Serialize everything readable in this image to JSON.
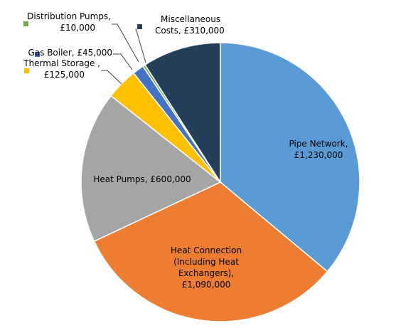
{
  "chart_data": {
    "type": "pie",
    "title": "",
    "currency": "£",
    "slices": [
      {
        "name": "Pipe Network",
        "value": 1230000,
        "color": "#5B9BD5",
        "label_lines": [
          "Pipe Network,",
          "£1,230,000"
        ]
      },
      {
        "name": "Heat Connection (Including Heat Exchangers)",
        "value": 1090000,
        "color": "#ED7D31",
        "label_lines": [
          "Heat Connection",
          "(Including Heat",
          "Exchangers),",
          "£1,090,000"
        ]
      },
      {
        "name": "Heat Pumps",
        "value": 600000,
        "color": "#A5A5A5",
        "label_lines": [
          "Heat Pumps,  £600,000"
        ]
      },
      {
        "name": "Thermal Storage",
        "value": 125000,
        "color": "#FFC000",
        "label_lines": [
          "Thermal Storage ,",
          "£125,000"
        ]
      },
      {
        "name": "Gas Boiler",
        "value": 45000,
        "color": "#4472C4",
        "label_lines": [
          "Gas Boiler,  £45,000"
        ]
      },
      {
        "name": "Distribution Pumps",
        "value": 10000,
        "color": "#70AD47",
        "label_lines": [
          "Distribution Pumps,",
          "£10,000"
        ]
      },
      {
        "name": "Miscellaneous Costs",
        "value": 310000,
        "color": "#243F5A",
        "label_lines": [
          "Miscellaneous",
          "Costs,  £310,000"
        ]
      }
    ],
    "start_angle": "12 o'clock",
    "direction": "clockwise",
    "legend": "none (data labels on and beside slices)"
  }
}
